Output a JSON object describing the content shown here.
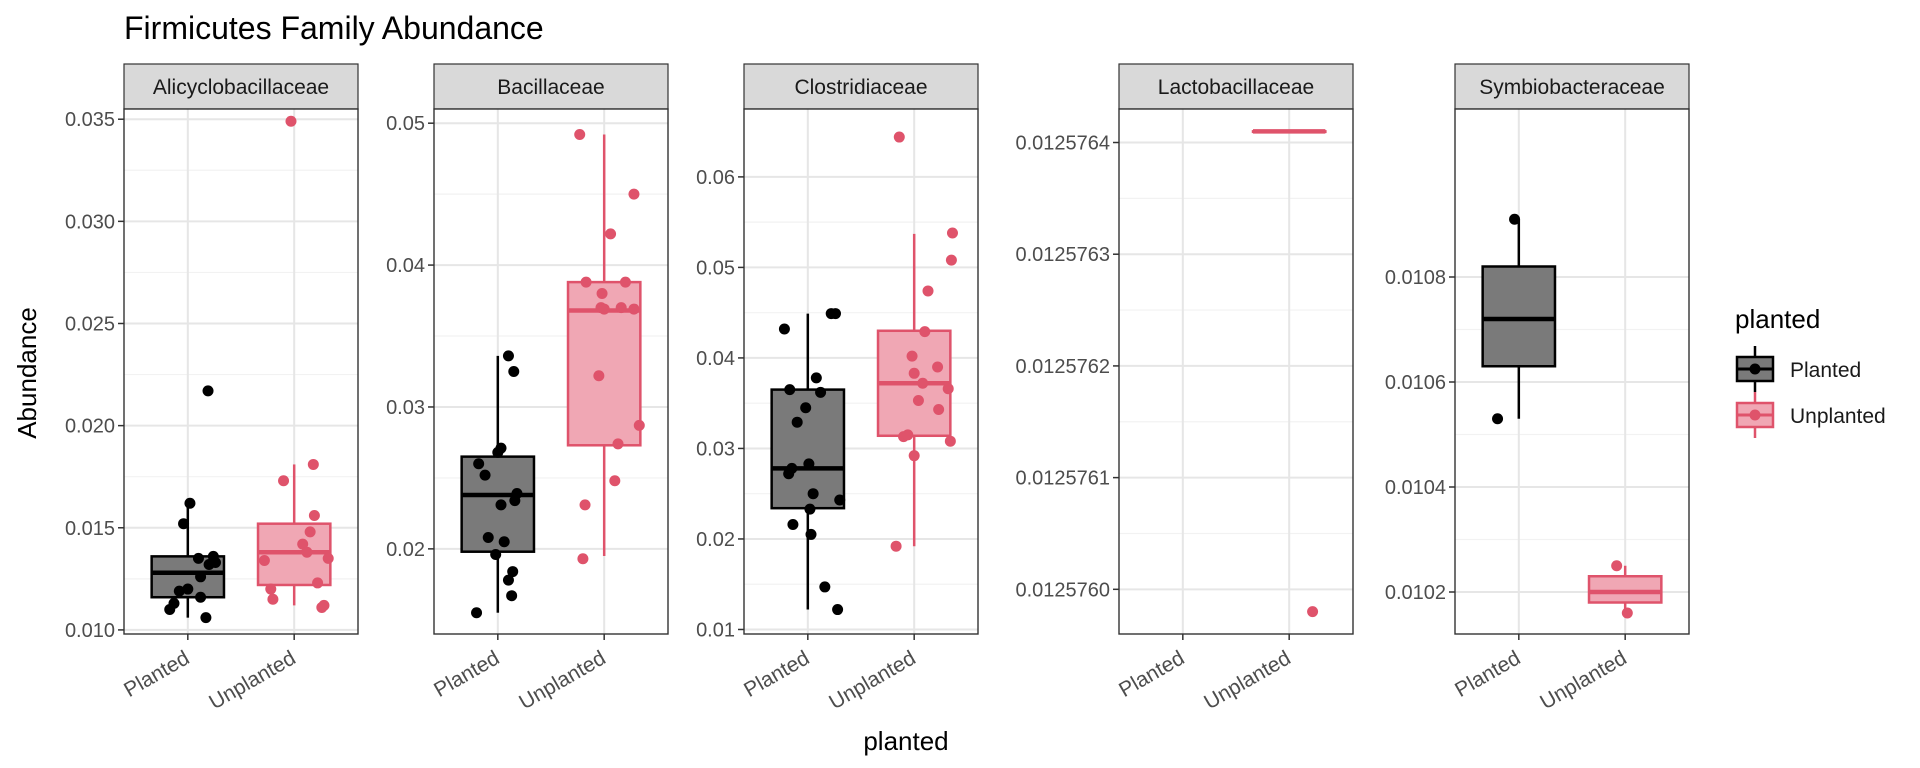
{
  "chart_data": {
    "type": "box",
    "title": "Firmicutes Family Abundance",
    "xlabel": "planted",
    "ylabel": "Abundance",
    "categories": [
      "Planted",
      "Unplanted"
    ],
    "legend": {
      "title": "planted",
      "position": "right",
      "entries": [
        {
          "label": "Planted",
          "color": "#000000",
          "fill": "#7a7a7a"
        },
        {
          "label": "Unplanted",
          "color": "#df536b",
          "fill": "#f0a7b4"
        }
      ]
    },
    "panels": [
      {
        "name": "Alicyclobacillaceae",
        "ylim": [
          0.0098,
          0.0355
        ],
        "yticks": [
          0.01,
          0.015,
          0.02,
          0.025,
          0.03,
          0.035
        ],
        "yticklabels": [
          "0.010",
          "0.015",
          "0.020",
          "0.025",
          "0.030",
          "0.035"
        ],
        "groups": [
          {
            "name": "Planted",
            "box": {
              "whislo": 0.0106,
              "q1": 0.0116,
              "med": 0.0128,
              "q3": 0.0136,
              "whishi": 0.0162
            },
            "points": [
              [
                0.83,
                0.011
              ],
              [
                0.87,
                0.0113
              ],
              [
                0.92,
                0.0119
              ],
              [
                1.0,
                0.012
              ],
              [
                1.17,
                0.0106
              ],
              [
                1.12,
                0.0116
              ],
              [
                1.24,
                0.0136
              ],
              [
                1.2,
                0.0132
              ],
              [
                1.26,
                0.0133
              ],
              [
                1.12,
                0.0126
              ],
              [
                1.1,
                0.0135
              ],
              [
                0.96,
                0.0152
              ],
              [
                1.02,
                0.0162
              ],
              [
                1.19,
                0.0217
              ]
            ]
          },
          {
            "name": "Unplanted",
            "box": {
              "whislo": 0.0112,
              "q1": 0.0122,
              "med": 0.0138,
              "q3": 0.0152,
              "whishi": 0.0181
            },
            "points": [
              [
                1.72,
                0.0134
              ],
              [
                1.78,
                0.012
              ],
              [
                1.8,
                0.0115
              ],
              [
                1.9,
                0.0173
              ],
              [
                2.08,
                0.0142
              ],
              [
                2.12,
                0.0138
              ],
              [
                2.15,
                0.0148
              ],
              [
                2.19,
                0.0156
              ],
              [
                2.22,
                0.0123
              ],
              [
                2.26,
                0.0111
              ],
              [
                2.28,
                0.0112
              ],
              [
                2.32,
                0.0135
              ],
              [
                2.18,
                0.0181
              ],
              [
                1.97,
                0.0349
              ]
            ]
          }
        ]
      },
      {
        "name": "Bacillaceae",
        "ylim": [
          0.014,
          0.051
        ],
        "yticks": [
          0.02,
          0.03,
          0.04,
          0.05
        ],
        "yticklabels": [
          "0.02",
          "0.03",
          "0.04",
          "0.05"
        ],
        "groups": [
          {
            "name": "Planted",
            "box": {
              "whislo": 0.0155,
              "q1": 0.0198,
              "med": 0.0238,
              "q3": 0.0265,
              "whishi": 0.0336
            },
            "points": [
              [
                0.8,
                0.0155
              ],
              [
                0.82,
                0.026
              ],
              [
                0.88,
                0.0252
              ],
              [
                0.91,
                0.0208
              ],
              [
                0.98,
                0.0196
              ],
              [
                1.03,
                0.0271
              ],
              [
                1.06,
                0.0205
              ],
              [
                1.0,
                0.0268
              ],
              [
                1.03,
                0.0231
              ],
              [
                1.16,
                0.0234
              ],
              [
                1.18,
                0.0239
              ],
              [
                1.15,
                0.0325
              ],
              [
                1.1,
                0.0178
              ],
              [
                1.13,
                0.0167
              ],
              [
                1.14,
                0.0184
              ],
              [
                1.1,
                0.0336
              ]
            ]
          },
          {
            "name": "Unplanted",
            "box": {
              "whislo": 0.0195,
              "q1": 0.0273,
              "med": 0.0368,
              "q3": 0.0388,
              "whishi": 0.0492
            },
            "points": [
              [
                1.77,
                0.0492
              ],
              [
                1.8,
                0.0193
              ],
              [
                1.82,
                0.0231
              ],
              [
                1.83,
                0.0388
              ],
              [
                1.95,
                0.0322
              ],
              [
                1.97,
                0.037
              ],
              [
                1.98,
                0.038
              ],
              [
                2.0,
                0.0369
              ],
              [
                2.06,
                0.0422
              ],
              [
                2.1,
                0.0248
              ],
              [
                2.13,
                0.0274
              ],
              [
                2.16,
                0.037
              ],
              [
                2.2,
                0.0388
              ],
              [
                2.28,
                0.0369
              ],
              [
                2.33,
                0.0287
              ],
              [
                2.28,
                0.045
              ]
            ]
          }
        ]
      },
      {
        "name": "Clostridiaceae",
        "ylim": [
          0.0095,
          0.0675
        ],
        "yticks": [
          0.01,
          0.02,
          0.03,
          0.04,
          0.05,
          0.06
        ],
        "yticklabels": [
          "0.01",
          "0.02",
          "0.03",
          "0.04",
          "0.05",
          "0.06"
        ],
        "groups": [
          {
            "name": "Planted",
            "box": {
              "whislo": 0.0122,
              "q1": 0.0234,
              "med": 0.0278,
              "q3": 0.0365,
              "whishi": 0.0449
            },
            "points": [
              [
                0.78,
                0.0432
              ],
              [
                0.82,
                0.0272
              ],
              [
                0.83,
                0.0365
              ],
              [
                0.85,
                0.0278
              ],
              [
                0.86,
                0.0216
              ],
              [
                0.9,
                0.0329
              ],
              [
                0.98,
                0.0345
              ],
              [
                1.01,
                0.0283
              ],
              [
                1.02,
                0.0233
              ],
              [
                1.03,
                0.0205
              ],
              [
                1.05,
                0.025
              ],
              [
                1.08,
                0.0378
              ],
              [
                1.12,
                0.0362
              ],
              [
                1.16,
                0.0147
              ],
              [
                1.22,
                0.0449
              ],
              [
                1.26,
                0.0449
              ],
              [
                1.28,
                0.0122
              ],
              [
                1.3,
                0.0243
              ]
            ]
          },
          {
            "name": "Unplanted",
            "box": {
              "whislo": 0.0192,
              "q1": 0.0314,
              "med": 0.0372,
              "q3": 0.043,
              "whishi": 0.0537
            },
            "points": [
              [
                1.83,
                0.0192
              ],
              [
                1.86,
                0.0644
              ],
              [
                1.9,
                0.0313
              ],
              [
                1.94,
                0.0315
              ],
              [
                1.98,
                0.0402
              ],
              [
                2.0,
                0.0383
              ],
              [
                2.0,
                0.0292
              ],
              [
                2.08,
                0.0372
              ],
              [
                2.04,
                0.0353
              ],
              [
                2.1,
                0.0429
              ],
              [
                2.13,
                0.0474
              ],
              [
                2.22,
                0.039
              ],
              [
                2.23,
                0.0343
              ],
              [
                2.32,
                0.0366
              ],
              [
                2.34,
                0.0308
              ],
              [
                2.35,
                0.0508
              ],
              [
                2.36,
                0.0538
              ]
            ]
          }
        ]
      },
      {
        "name": "Lactobacillaceae",
        "ylim": [
          0.01257596,
          0.01257643
        ],
        "yticks": [
          0.012576,
          0.0125761,
          0.0125762,
          0.0125763,
          0.0125764
        ],
        "yticklabels": [
          "0.0125760",
          "0.0125761",
          "0.0125762",
          "0.0125763",
          "0.0125764"
        ],
        "groups": [
          {
            "name": "Planted",
            "box": null,
            "points": []
          },
          {
            "name": "Unplanted",
            "box": {
              "whislo": 0.01257641,
              "q1": 0.01257641,
              "med": 0.01257641,
              "q3": 0.01257641,
              "whishi": 0.01257641
            },
            "points": [
              [
                2.22,
                0.01257598
              ]
            ]
          }
        ]
      },
      {
        "name": "Symbiobacteraceae",
        "ylim": [
          0.01012,
          0.01112
        ],
        "yticks": [
          0.0102,
          0.0104,
          0.0106,
          0.0108
        ],
        "yticklabels": [
          "0.0102",
          "0.0104",
          "0.0106",
          "0.0108"
        ],
        "groups": [
          {
            "name": "Planted",
            "box": {
              "whislo": 0.01053,
              "q1": 0.01063,
              "med": 0.01072,
              "q3": 0.01082,
              "whishi": 0.01091
            },
            "points": [
              [
                0.8,
                0.01053
              ],
              [
                0.96,
                0.01091
              ]
            ]
          },
          {
            "name": "Unplanted",
            "box": {
              "whislo": 0.01016,
              "q1": 0.01018,
              "med": 0.0102,
              "q3": 0.01023,
              "whishi": 0.01025
            },
            "points": [
              [
                1.92,
                0.01025
              ],
              [
                2.02,
                0.01016
              ]
            ]
          }
        ]
      }
    ]
  }
}
